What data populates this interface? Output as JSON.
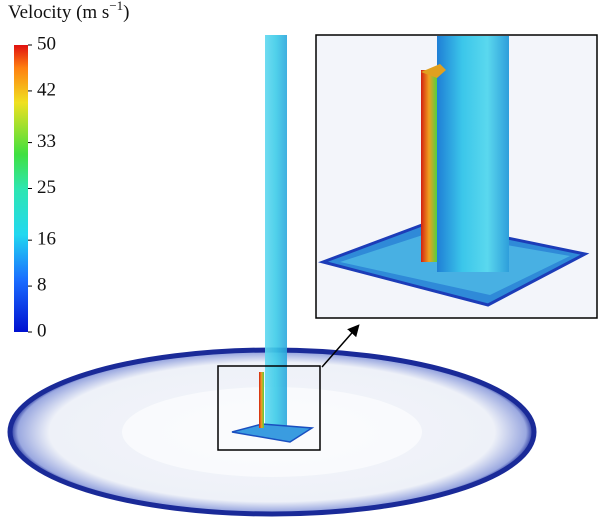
{
  "colorbar": {
    "title_text": "Velocity (m s",
    "title_exponent": "−1",
    "title_close": ")",
    "range": [
      0,
      50
    ],
    "ticks": [
      50,
      42,
      33,
      25,
      16,
      8,
      0
    ]
  }
}
